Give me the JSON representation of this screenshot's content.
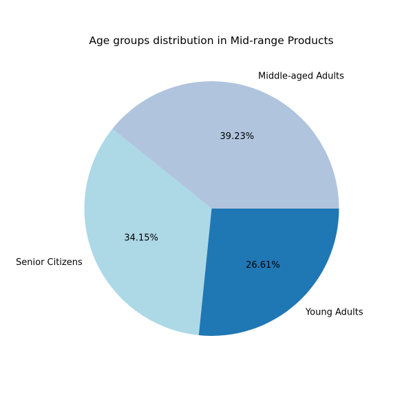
{
  "chart_data": {
    "type": "pie",
    "title": "Age groups distribution in Mid-range Products",
    "slices": [
      {
        "label": "Young Adults",
        "value": 26.61,
        "pct_label": "26.61%",
        "color": "#1f77b4"
      },
      {
        "label": "Middle-aged Adults",
        "value": 39.23,
        "pct_label": "39.23%",
        "color": "#b0c4de"
      },
      {
        "label": "Senior Citizens",
        "value": 34.15,
        "pct_label": "34.15%",
        "color": "#add8e6"
      }
    ],
    "start_angle": "0 (3 o'clock), counter-clockwise",
    "order_drawn": [
      "Middle-aged Adults",
      "Senior Citizens",
      "Young Adults"
    ]
  }
}
